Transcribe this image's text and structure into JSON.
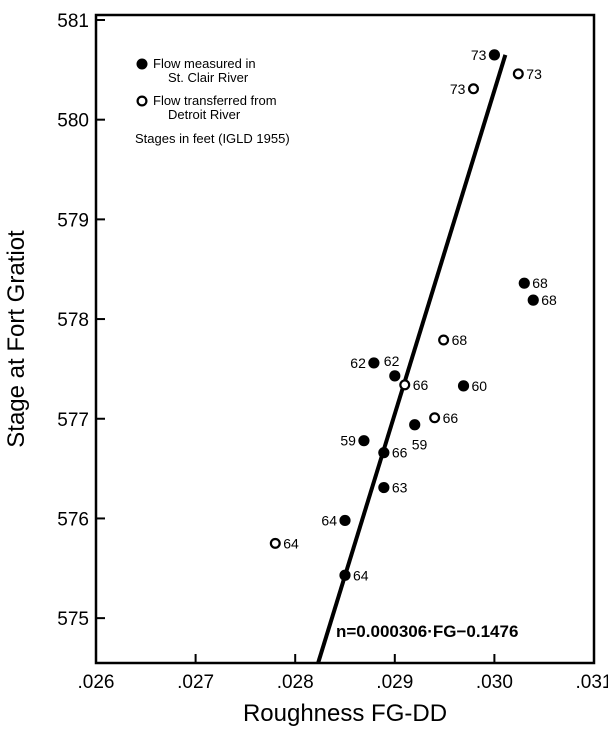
{
  "chart_data": {
    "type": "scatter",
    "xlabel": "Roughness FG-DD",
    "ylabel": "Stage at Fort Gratiot",
    "xlim": [
      0.026,
      0.031
    ],
    "ylim": [
      574.55,
      581.05
    ],
    "x_ticks": [
      0.026,
      0.027,
      0.028,
      0.029,
      0.03,
      0.031
    ],
    "x_tick_labels": [
      ".026",
      ".027",
      ".028",
      ".029",
      ".030",
      ".031"
    ],
    "y_ticks": [
      575,
      576,
      577,
      578,
      579,
      580,
      581
    ],
    "y_tick_labels": [
      "575",
      "576",
      "577",
      "578",
      "579",
      "580",
      "581"
    ],
    "grid": false,
    "legend": {
      "position": "top-left",
      "filled_label_1": "Flow measured in",
      "filled_label_2": "St. Clair River",
      "open_label_1": "Flow transferred from",
      "open_label_2": "Detroit River",
      "note": "Stages in feet (IGLD 1955)"
    },
    "series": [
      {
        "name": "Flow measured in St. Clair River",
        "marker": "filled",
        "points": [
          {
            "x": 0.03,
            "y": 580.65,
            "label": "73",
            "side": "left"
          },
          {
            "x": 0.0303,
            "y": 578.36,
            "label": "68",
            "side": "right"
          },
          {
            "x": 0.03039,
            "y": 578.19,
            "label": "68",
            "side": "right"
          },
          {
            "x": 0.02879,
            "y": 577.56,
            "label": "62",
            "side": "left"
          },
          {
            "x": 0.029,
            "y": 577.43,
            "label": "62",
            "side": "up"
          },
          {
            "x": 0.02969,
            "y": 577.33,
            "label": "60",
            "side": "right"
          },
          {
            "x": 0.0292,
            "y": 576.94,
            "label": "59",
            "side": "down"
          },
          {
            "x": 0.02869,
            "y": 576.78,
            "label": "59",
            "side": "left"
          },
          {
            "x": 0.02889,
            "y": 576.66,
            "label": "66",
            "side": "right"
          },
          {
            "x": 0.02889,
            "y": 576.31,
            "label": "63",
            "side": "right"
          },
          {
            "x": 0.0285,
            "y": 575.98,
            "label": "64",
            "side": "left"
          },
          {
            "x": 0.0285,
            "y": 575.43,
            "label": "64",
            "side": "right"
          }
        ]
      },
      {
        "name": "Flow transferred from Detroit River",
        "marker": "open",
        "points": [
          {
            "x": 0.03024,
            "y": 580.46,
            "label": "73",
            "side": "right"
          },
          {
            "x": 0.02979,
            "y": 580.31,
            "label": "73",
            "side": "left"
          },
          {
            "x": 0.02949,
            "y": 577.79,
            "label": "68",
            "side": "right"
          },
          {
            "x": 0.0291,
            "y": 577.34,
            "label": "66",
            "side": "right"
          },
          {
            "x": 0.0294,
            "y": 577.01,
            "label": "66",
            "side": "right"
          },
          {
            "x": 0.0278,
            "y": 575.75,
            "label": "64",
            "side": "right"
          }
        ]
      }
    ],
    "fit_line": {
      "x": [
        0.02823,
        0.03011
      ],
      "y": [
        574.55,
        580.65
      ],
      "equation": "n=0.000306·FG−0.1476"
    }
  }
}
